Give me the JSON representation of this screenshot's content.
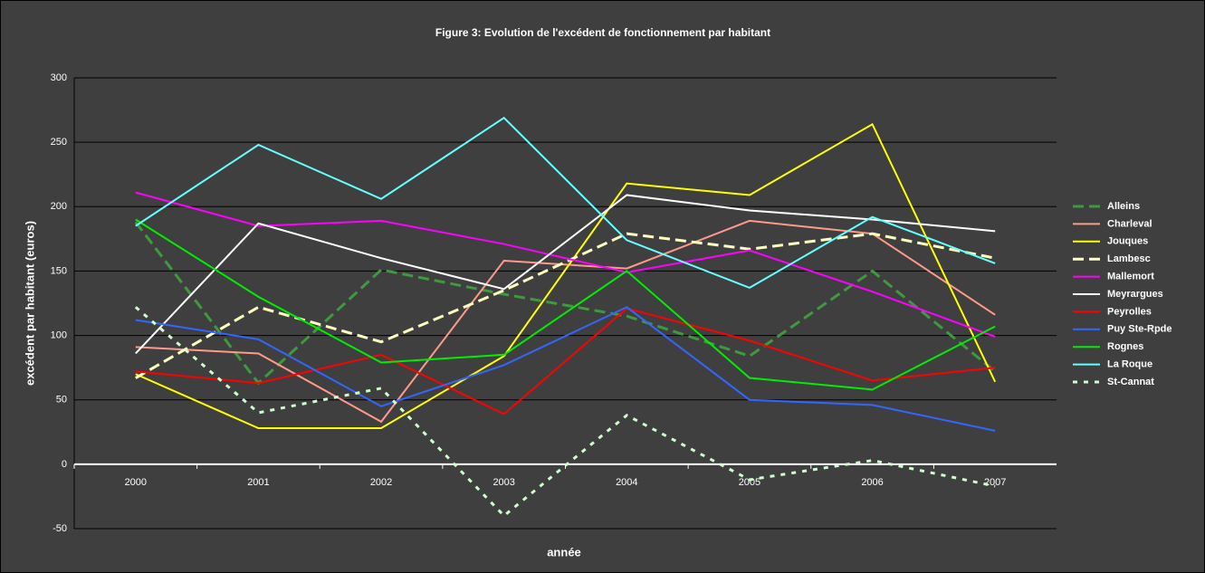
{
  "chart_data": {
    "type": "line",
    "title": "Figure 3: Evolution de l'excédent de fonctionnement par habitant",
    "x_label": "année",
    "y_label": "excédent par habitant (euros)",
    "categories": [
      "2000",
      "2001",
      "2002",
      "2003",
      "2004",
      "2005",
      "2006",
      "2007"
    ],
    "ylim": [
      -50,
      300
    ],
    "yticks": [
      -50,
      0,
      50,
      100,
      150,
      200,
      250,
      300
    ],
    "grid": true,
    "legend": "right",
    "series": [
      {
        "name": "Alleins",
        "color": "#3f9a3f",
        "dash": "dashed",
        "values": [
          188,
          63,
          151,
          132,
          115,
          84,
          150,
          72
        ]
      },
      {
        "name": "Charleval",
        "color": "#ff9a8a",
        "dash": "solid",
        "values": [
          91,
          86,
          33,
          158,
          152,
          189,
          179,
          116
        ]
      },
      {
        "name": "Jouques",
        "color": "#ffff00",
        "dash": "solid",
        "values": [
          70,
          28,
          28,
          84,
          218,
          209,
          264,
          64
        ]
      },
      {
        "name": "Lambesc",
        "color": "#ffffc0",
        "dash": "dashed",
        "values": [
          67,
          122,
          95,
          135,
          179,
          167,
          179,
          160
        ]
      },
      {
        "name": "Mallemort",
        "color": "#ff00ff",
        "dash": "solid",
        "values": [
          211,
          185,
          189,
          171,
          149,
          166,
          134,
          99
        ]
      },
      {
        "name": "Meyrargues",
        "color": "#ffffff",
        "dash": "solid",
        "values": [
          86,
          187,
          160,
          136,
          209,
          197,
          190,
          181
        ]
      },
      {
        "name": "Peyrolles",
        "color": "#ff0000",
        "dash": "solid",
        "values": [
          72,
          63,
          85,
          39,
          121,
          96,
          65,
          75
        ]
      },
      {
        "name": "Puy Ste-Rpde",
        "color": "#3366ff",
        "dash": "solid",
        "values": [
          112,
          97,
          45,
          77,
          122,
          50,
          46,
          26
        ]
      },
      {
        "name": "Rognes",
        "color": "#00ee00",
        "dash": "solid",
        "values": [
          190,
          130,
          79,
          85,
          150,
          67,
          58,
          107
        ]
      },
      {
        "name": "La Roque",
        "color": "#66ffff",
        "dash": "solid",
        "values": [
          185,
          248,
          206,
          269,
          174,
          137,
          192,
          156
        ]
      },
      {
        "name": "St-Cannat",
        "color": "#ccffcc",
        "dash": "dotted",
        "values": [
          122,
          40,
          59,
          -40,
          38,
          -12,
          3,
          -17
        ]
      }
    ]
  }
}
